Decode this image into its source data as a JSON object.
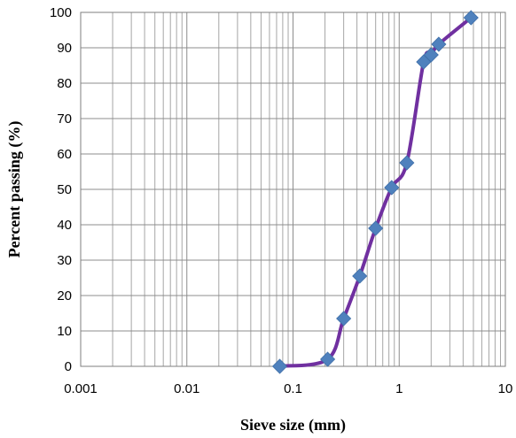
{
  "chart_data": {
    "type": "line",
    "title": "",
    "xlabel": "Sieve size (mm)",
    "ylabel": "Percent passing (%)",
    "xscale": "log",
    "xlim": [
      0.001,
      10
    ],
    "ylim": [
      0,
      100
    ],
    "grid": true,
    "x_ticks": [
      "0.001",
      "0.01",
      "0.1",
      "1",
      "10"
    ],
    "y_ticks": [
      "0",
      "10",
      "20",
      "30",
      "40",
      "50",
      "60",
      "70",
      "80",
      "90",
      "100"
    ],
    "series": [
      {
        "color": "#7030A0",
        "marker": "diamond",
        "marker_color": "#4F81BD",
        "x": [
          0.075,
          0.212,
          0.3,
          0.425,
          0.6,
          0.85,
          1.18,
          1.7,
          2.0,
          2.36,
          4.75
        ],
        "y": [
          0,
          2,
          13.5,
          25.5,
          39,
          50.5,
          57.5,
          86,
          88,
          91,
          98.5
        ]
      }
    ]
  }
}
